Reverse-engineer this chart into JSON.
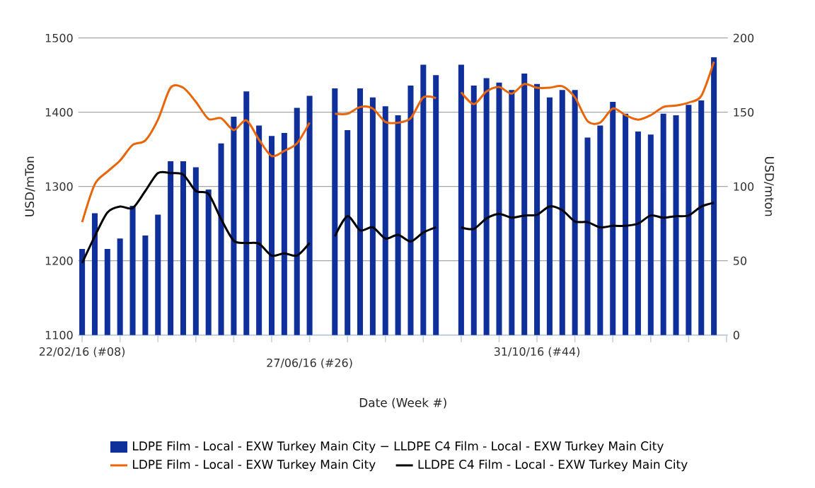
{
  "chart_data": {
    "type": "bar",
    "xlabel": "Date (Week #)",
    "ylabel": "USD/mTon",
    "y2label": "USD/mton",
    "categories": [
      "22/02/16 (#08)",
      null,
      null,
      null,
      null,
      null,
      null,
      null,
      null,
      null,
      null,
      null,
      null,
      null,
      null,
      null,
      null,
      null,
      "27/06/16 (#26)",
      null,
      null,
      null,
      null,
      null,
      null,
      null,
      null,
      null,
      null,
      null,
      null,
      null,
      null,
      null,
      null,
      null,
      "31/10/16 (#44)",
      null,
      null,
      null,
      null,
      null,
      null,
      null,
      null,
      null,
      null,
      null,
      null,
      null,
      null
    ],
    "ylim": [
      1100,
      1500
    ],
    "yticks": [
      1100,
      1200,
      1300,
      1400,
      1500
    ],
    "y2lim": [
      0,
      200
    ],
    "y2ticks": [
      0,
      50,
      100,
      150,
      200
    ],
    "grid": "y",
    "legend": "bottom",
    "series": [
      {
        "name": "LDPE Film - Local - EXW Turkey Main City − LLDPE C4 Film - Local - EXW Turkey Main City",
        "axis": "y2",
        "color": "#0f2f9b",
        "values": [
          58,
          82,
          58,
          65,
          87,
          67,
          81,
          117,
          117,
          113,
          98,
          129,
          147,
          164,
          141,
          134,
          136,
          153,
          161,
          null,
          166,
          138,
          166,
          160,
          154,
          148,
          168,
          182,
          175,
          null,
          182,
          168,
          173,
          170,
          165,
          176,
          169,
          160,
          165,
          165,
          133,
          141,
          157,
          149,
          137,
          135,
          149,
          148,
          155,
          158,
          187
        ]
      },
      {
        "name": "LDPE Film - Local - EXW Turkey Main City",
        "type": "line",
        "color": "#e8650a",
        "values": [
          1252,
          1303,
          1320,
          1335,
          1356,
          1362,
          1390,
          1433,
          1433,
          1414,
          1391,
          1392,
          1376,
          1389,
          1363,
          1341,
          1348,
          1358,
          1386,
          null,
          1398,
          1398,
          1407,
          1405,
          1387,
          1386,
          1392,
          1420,
          1419,
          null,
          1427,
          1411,
          1428,
          1434,
          1425,
          1438,
          1433,
          1433,
          1435,
          1420,
          1388,
          1386,
          1405,
          1396,
          1390,
          1396,
          1407,
          1409,
          1413,
          1422,
          1468
        ]
      },
      {
        "name": "LLDPE C4 Film - Local - EXW Turkey Main City",
        "type": "line",
        "color": "#000000",
        "values": [
          1197,
          1233,
          1265,
          1273,
          1271,
          1294,
          1318,
          1318,
          1316,
          1294,
          1290,
          1256,
          1227,
          1224,
          1223,
          1207,
          1210,
          1207,
          1224,
          null,
          1233,
          1260,
          1241,
          1245,
          1230,
          1235,
          1226,
          1238,
          1245,
          null,
          1245,
          1243,
          1257,
          1263,
          1258,
          1261,
          1262,
          1273,
          1268,
          1253,
          1252,
          1245,
          1247,
          1247,
          1250,
          1261,
          1258,
          1260,
          1261,
          1273,
          1278
        ]
      }
    ]
  }
}
